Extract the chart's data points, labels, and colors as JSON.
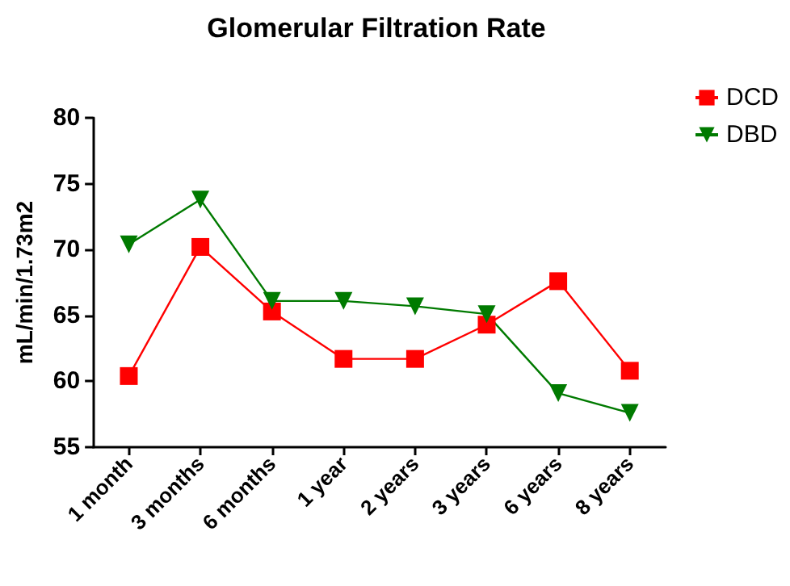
{
  "chart_data": {
    "type": "line",
    "title": "Glomerular Filtration Rate",
    "ylabel": "mL/min/1.73m2",
    "categories": [
      "1 month",
      "3 months",
      "6 months",
      "1 year",
      "2 years",
      "3 years",
      "6 years",
      "8 years"
    ],
    "series": [
      {
        "name": "DCD",
        "color": "#ff0000",
        "marker": "square",
        "values": [
          60.4,
          70.2,
          65.3,
          61.7,
          61.7,
          64.3,
          67.6,
          60.8
        ]
      },
      {
        "name": "DBD",
        "color": "#007a00",
        "marker": "triangle",
        "values": [
          70.4,
          73.8,
          66.1,
          66.1,
          65.7,
          65.1,
          59.1,
          57.6
        ]
      }
    ],
    "ylim": [
      55,
      80
    ],
    "yticks": [
      55,
      60,
      65,
      70,
      75,
      80
    ],
    "grid": false,
    "legend": "top right",
    "line_style": "solid"
  }
}
